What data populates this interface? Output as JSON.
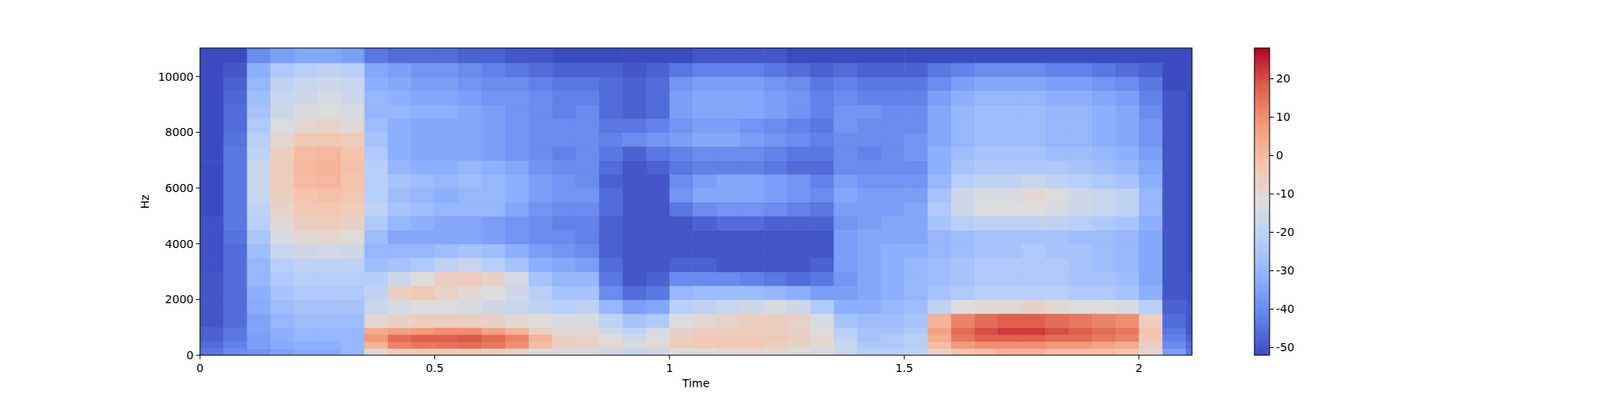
{
  "chart_data": {
    "type": "heatmap",
    "x_label": "Time",
    "y_label": "Hz",
    "xlim": [
      0,
      2.113
    ],
    "ylim": [
      0,
      11025
    ],
    "xticks": [
      0,
      0.5,
      1,
      1.5,
      2
    ],
    "yticks": [
      0,
      2000,
      4000,
      6000,
      8000,
      10000
    ],
    "zlim": [
      -52,
      28
    ],
    "zticks": [
      -50,
      -40,
      -30,
      -20,
      -10,
      0,
      10,
      20
    ],
    "x": [
      0,
      0.05,
      0.1,
      0.15,
      0.2,
      0.25,
      0.3,
      0.35,
      0.4,
      0.45,
      0.5,
      0.55,
      0.6,
      0.65,
      0.7,
      0.75,
      0.8,
      0.85,
      0.9,
      0.95,
      1,
      1.05,
      1.1,
      1.15,
      1.2,
      1.25,
      1.3,
      1.35,
      1.4,
      1.45,
      1.5,
      1.55,
      1.6,
      1.65,
      1.7,
      1.75,
      1.8,
      1.85,
      1.9,
      1.95,
      2,
      2.05,
      2.1
    ],
    "y": [
      0,
      250,
      500,
      750,
      1000,
      1500,
      2000,
      2500,
      3000,
      3500,
      4000,
      4500,
      5000,
      5500,
      6000,
      6500,
      7000,
      7500,
      8000,
      8500,
      9000,
      9500,
      10000,
      10500
    ],
    "values": [
      [
        -44,
        -46,
        -48,
        -48,
        -50,
        -50,
        -50,
        -50,
        -51,
        -51,
        -51,
        -51,
        -52,
        -52,
        -52,
        -52,
        -52,
        -52,
        -52,
        -52,
        -52,
        -52,
        -52,
        -52
      ],
      [
        -40,
        -42,
        -44,
        -44,
        -46,
        -46,
        -46,
        -46,
        -46,
        -46,
        -45,
        -44,
        -44,
        -44,
        -44,
        -44,
        -44,
        -45,
        -46,
        -46,
        -47,
        -48,
        -50,
        -52
      ],
      [
        -38,
        -36,
        -36,
        -35,
        -35,
        -33,
        -32,
        -30,
        -30,
        -28,
        -25,
        -22,
        -20,
        -18,
        -18,
        -18,
        -20,
        -22,
        -24,
        -26,
        -28,
        -30,
        -32,
        -40
      ],
      [
        -35,
        -33,
        -32,
        -32,
        -30,
        -28,
        -26,
        -24,
        -22,
        -18,
        -14,
        -10,
        -8,
        -6,
        -5,
        -5,
        -6,
        -9,
        -13,
        -16,
        -18,
        -20,
        -24,
        -36
      ],
      [
        -33,
        -32,
        -30,
        -30,
        -28,
        -26,
        -24,
        -22,
        -20,
        -16,
        -10,
        -6,
        -4,
        -2,
        0,
        1,
        0,
        -4,
        -9,
        -13,
        -16,
        -18,
        -22,
        -34
      ],
      [
        -33,
        -32,
        -30,
        -30,
        -28,
        -26,
        -24,
        -22,
        -20,
        -15,
        -9,
        -5,
        -3,
        -1,
        1,
        2,
        1,
        -3,
        -8,
        -12,
        -14,
        -16,
        -20,
        -34
      ],
      [
        -30,
        -30,
        -30,
        -30,
        -28,
        -26,
        -24,
        -22,
        -20,
        -16,
        -11,
        -7,
        -5,
        -3,
        -2,
        -1,
        -2,
        -5,
        -10,
        -14,
        -16,
        -18,
        -22,
        -36
      ],
      [
        -10,
        2,
        8,
        4,
        -10,
        -18,
        -20,
        -22,
        -28,
        -30,
        -28,
        -24,
        -20,
        -22,
        -22,
        -22,
        -24,
        -26,
        -28,
        -30,
        -30,
        -32,
        -34,
        -44
      ],
      [
        -5,
        12,
        16,
        6,
        -8,
        -14,
        -6,
        -16,
        -26,
        -30,
        -34,
        -30,
        -26,
        -28,
        -26,
        -30,
        -32,
        -32,
        -32,
        -30,
        -32,
        -34,
        -36,
        -46
      ],
      [
        -4,
        14,
        18,
        8,
        -6,
        -12,
        -4,
        -12,
        -24,
        -30,
        -34,
        -32,
        -28,
        -30,
        -28,
        -32,
        -34,
        -34,
        -34,
        -32,
        -34,
        -36,
        -38,
        -46
      ],
      [
        -4,
        15,
        18,
        10,
        -6,
        -12,
        -8,
        -6,
        -20,
        -28,
        -34,
        -34,
        -30,
        -32,
        -30,
        -32,
        -34,
        -34,
        -34,
        -32,
        -34,
        -36,
        -38,
        -46
      ],
      [
        -4,
        16,
        19,
        10,
        -6,
        -14,
        -10,
        -5,
        -18,
        -26,
        -34,
        -34,
        -30,
        -30,
        -28,
        -30,
        -34,
        -34,
        -34,
        -34,
        -36,
        -38,
        -40,
        -48
      ],
      [
        -6,
        14,
        16,
        6,
        -8,
        -16,
        -12,
        -8,
        -22,
        -28,
        -36,
        -36,
        -30,
        -30,
        -30,
        -32,
        -36,
        -36,
        -36,
        -36,
        -38,
        -40,
        -42,
        -48
      ],
      [
        -8,
        10,
        12,
        2,
        -10,
        -18,
        -16,
        -14,
        -26,
        -32,
        -38,
        -38,
        -34,
        -32,
        -32,
        -34,
        -38,
        -38,
        -38,
        -38,
        -38,
        -40,
        -44,
        -50
      ],
      [
        -12,
        0,
        2,
        -6,
        -12,
        -20,
        -22,
        -26,
        -32,
        -36,
        -40,
        -40,
        -38,
        -36,
        -36,
        -38,
        -40,
        -40,
        -40,
        -40,
        -40,
        -42,
        -46,
        -50
      ],
      [
        -14,
        -6,
        -8,
        -10,
        -14,
        -22,
        -26,
        -30,
        -34,
        -38,
        -40,
        -42,
        -40,
        -38,
        -38,
        -40,
        -42,
        -40,
        -40,
        -42,
        -42,
        -44,
        -48,
        -52
      ],
      [
        -14,
        -8,
        -8,
        -10,
        -14,
        -20,
        -26,
        -30,
        -36,
        -40,
        -42,
        -42,
        -40,
        -38,
        -40,
        -40,
        -40,
        -40,
        -40,
        -40,
        -42,
        -44,
        -48,
        -52
      ],
      [
        -16,
        -10,
        -12,
        -16,
        -20,
        -30,
        -40,
        -44,
        -46,
        -48,
        -48,
        -48,
        -46,
        -46,
        -48,
        -46,
        -44,
        -42,
        -44,
        -46,
        -46,
        -46,
        -48,
        -52
      ],
      [
        -18,
        -14,
        -16,
        -20,
        -26,
        -36,
        -46,
        -50,
        -50,
        -50,
        -50,
        -50,
        -50,
        -50,
        -50,
        -50,
        -48,
        -40,
        -44,
        -48,
        -48,
        -48,
        -50,
        -52
      ],
      [
        -16,
        -10,
        -12,
        -14,
        -24,
        -34,
        -44,
        -48,
        -50,
        -50,
        -50,
        -50,
        -50,
        -50,
        -50,
        -48,
        -44,
        -38,
        -42,
        -46,
        -46,
        -46,
        -48,
        -52
      ],
      [
        -12,
        -6,
        -6,
        -8,
        -12,
        -22,
        -30,
        -40,
        -48,
        -50,
        -50,
        -50,
        -44,
        -38,
        -40,
        -44,
        -42,
        -36,
        -38,
        -36,
        -36,
        -38,
        -44,
        -52
      ],
      [
        -12,
        -5,
        -4,
        -6,
        -10,
        -20,
        -28,
        -40,
        -48,
        -50,
        -50,
        -48,
        -40,
        -34,
        -36,
        -42,
        -40,
        -34,
        -36,
        -34,
        -34,
        -36,
        -42,
        -50
      ],
      [
        -10,
        -4,
        -4,
        -6,
        -8,
        -18,
        -28,
        -40,
        -50,
        -50,
        -50,
        -46,
        -38,
        -34,
        -34,
        -42,
        -40,
        -34,
        -36,
        -34,
        -34,
        -36,
        -42,
        -50
      ],
      [
        -10,
        -4,
        -4,
        -5,
        -6,
        -16,
        -28,
        -42,
        -50,
        -50,
        -50,
        -46,
        -38,
        -34,
        -34,
        -42,
        -40,
        -36,
        -38,
        -34,
        -34,
        -36,
        -42,
        -50
      ],
      [
        -10,
        -6,
        -4,
        -6,
        -6,
        -14,
        -30,
        -44,
        -50,
        -50,
        -50,
        -48,
        -40,
        -36,
        -36,
        -44,
        -42,
        -38,
        -40,
        -36,
        -36,
        -38,
        -44,
        -50
      ],
      [
        -12,
        -8,
        -6,
        -8,
        -8,
        -16,
        -32,
        -46,
        -50,
        -50,
        -50,
        -48,
        -42,
        -38,
        -38,
        -46,
        -44,
        -40,
        -42,
        -38,
        -38,
        -40,
        -46,
        -52
      ],
      [
        -14,
        -10,
        -10,
        -12,
        -14,
        -24,
        -36,
        -44,
        -48,
        -50,
        -50,
        -48,
        -44,
        -40,
        -42,
        -46,
        -44,
        -42,
        -44,
        -42,
        -42,
        -44,
        -48,
        -52
      ],
      [
        -18,
        -18,
        -20,
        -22,
        -26,
        -32,
        -36,
        -38,
        -36,
        -36,
        -36,
        -38,
        -36,
        -34,
        -36,
        -40,
        -40,
        -40,
        -38,
        -38,
        -40,
        -42,
        -46,
        -52
      ],
      [
        -22,
        -24,
        -26,
        -26,
        -28,
        -32,
        -34,
        -34,
        -34,
        -34,
        -34,
        -36,
        -36,
        -36,
        -38,
        -40,
        -42,
        -40,
        -40,
        -38,
        -42,
        -44,
        -48,
        -52
      ],
      [
        -22,
        -24,
        -24,
        -26,
        -28,
        -30,
        -32,
        -32,
        -32,
        -32,
        -34,
        -34,
        -36,
        -36,
        -38,
        -40,
        -40,
        -40,
        -40,
        -40,
        -42,
        -44,
        -48,
        -52
      ],
      [
        -20,
        -22,
        -22,
        -24,
        -26,
        -28,
        -30,
        -30,
        -30,
        -32,
        -34,
        -34,
        -34,
        -36,
        -38,
        -40,
        -38,
        -38,
        -40,
        -40,
        -42,
        -44,
        -48,
        -52
      ],
      [
        -8,
        0,
        4,
        6,
        2,
        -20,
        -26,
        -28,
        -28,
        -30,
        -30,
        -26,
        -24,
        -26,
        -30,
        -32,
        -32,
        -34,
        -34,
        -34,
        -36,
        -40,
        -44,
        -52
      ],
      [
        -2,
        8,
        14,
        16,
        12,
        -12,
        -24,
        -26,
        -26,
        -28,
        -28,
        -22,
        -16,
        -16,
        -22,
        -26,
        -28,
        -30,
        -30,
        -30,
        -32,
        -36,
        -42,
        -52
      ],
      [
        0,
        10,
        18,
        20,
        16,
        -10,
        -22,
        -24,
        -24,
        -26,
        -26,
        -20,
        -12,
        -14,
        -20,
        -24,
        -26,
        -28,
        -28,
        -28,
        -30,
        -34,
        -40,
        -52
      ],
      [
        2,
        10,
        18,
        22,
        18,
        -10,
        -22,
        -24,
        -24,
        -26,
        -26,
        -20,
        -12,
        -14,
        -20,
        -24,
        -26,
        -28,
        -28,
        -28,
        -30,
        -34,
        -40,
        -52
      ],
      [
        2,
        10,
        18,
        22,
        18,
        -8,
        -22,
        -24,
        -24,
        -24,
        -26,
        -20,
        -12,
        -10,
        -18,
        -24,
        -26,
        -28,
        -28,
        -28,
        -30,
        -34,
        -40,
        -52
      ],
      [
        0,
        8,
        16,
        20,
        16,
        -10,
        -22,
        -24,
        -24,
        -26,
        -26,
        -20,
        -14,
        -12,
        -20,
        -24,
        -28,
        -30,
        -30,
        -30,
        -32,
        -36,
        -42,
        -52
      ],
      [
        0,
        8,
        16,
        18,
        14,
        -12,
        -24,
        -26,
        -26,
        -26,
        -28,
        -22,
        -16,
        -16,
        -22,
        -26,
        -28,
        -30,
        -30,
        -30,
        -32,
        -36,
        -42,
        -52
      ],
      [
        0,
        6,
        14,
        16,
        12,
        -12,
        -24,
        -26,
        -28,
        -28,
        -28,
        -24,
        -18,
        -18,
        -24,
        -28,
        -30,
        -32,
        -32,
        -32,
        -34,
        -38,
        -44,
        -52
      ],
      [
        -2,
        4,
        12,
        14,
        10,
        -14,
        -26,
        -28,
        -30,
        -30,
        -30,
        -26,
        -20,
        -20,
        -26,
        -30,
        -32,
        -34,
        -34,
        -34,
        -36,
        -40,
        -46,
        -52
      ],
      [
        -10,
        -6,
        -4,
        -2,
        -6,
        -22,
        -32,
        -34,
        -34,
        -34,
        -34,
        -32,
        -30,
        -30,
        -32,
        -34,
        -36,
        -38,
        -38,
        -40,
        -42,
        -44,
        -48,
        -52
      ],
      [
        -36,
        -40,
        -42,
        -44,
        -46,
        -48,
        -50,
        -50,
        -50,
        -50,
        -50,
        -50,
        -50,
        -50,
        -50,
        -50,
        -50,
        -50,
        -50,
        -50,
        -50,
        -52,
        -52,
        -52
      ],
      [
        -44,
        -46,
        -48,
        -50,
        -50,
        -50,
        -51,
        -51,
        -52,
        -52,
        -52,
        -52,
        -52,
        -52,
        -52,
        -52,
        -52,
        -52,
        -52,
        -52,
        -52,
        -52,
        -52,
        -52
      ]
    ]
  }
}
